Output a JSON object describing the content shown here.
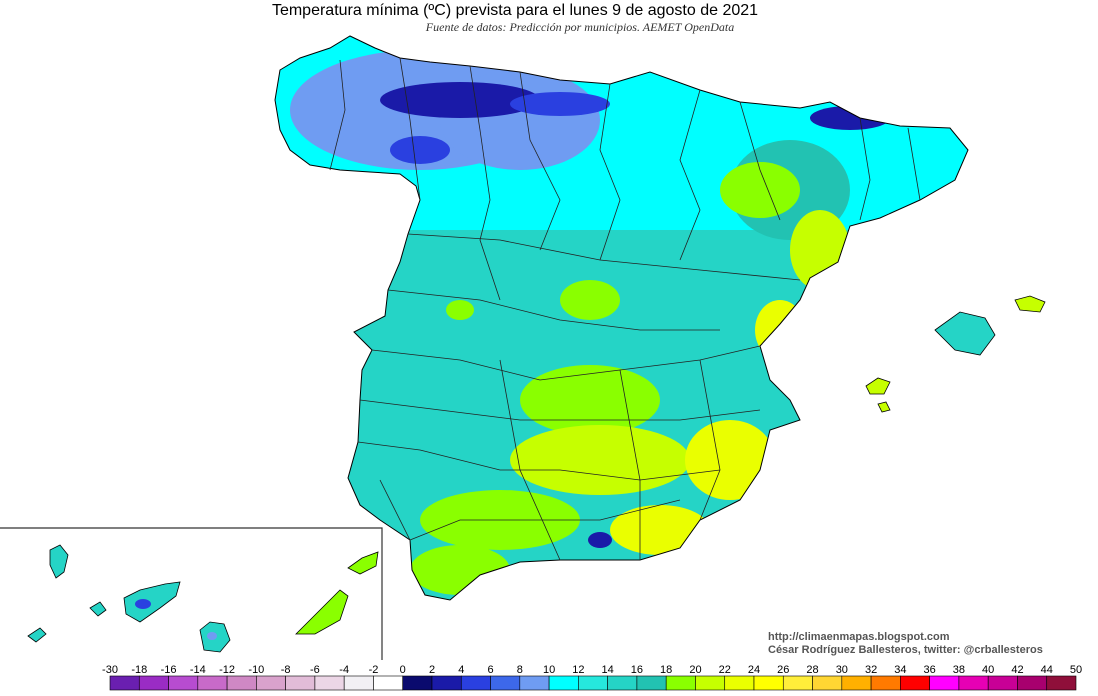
{
  "title": "Temperatura mínima (ºC) prevista para el lunes 9 de agosto de 2021",
  "subtitle": "Fuente de datos: Predicción por municipios. AEMET OpenData",
  "credit_url": "http://climaenmapas.blogspot.com",
  "credit_author": "César Rodríguez Ballesteros, twitter: @crballesteros",
  "legend": {
    "ticks": [
      "-30",
      "-18",
      "-16",
      "-14",
      "-12",
      "-10",
      "-8",
      "-6",
      "-4",
      "-2",
      "0",
      "2",
      "4",
      "6",
      "8",
      "10",
      "12",
      "14",
      "16",
      "18",
      "20",
      "22",
      "24",
      "26",
      "28",
      "30",
      "32",
      "34",
      "36",
      "38",
      "40",
      "42",
      "44",
      "50"
    ],
    "colors": [
      "#6a1fb0",
      "#9a2cc4",
      "#b74cd0",
      "#c86ac9",
      "#cf88c4",
      "#d9a2cc",
      "#e2bcd8",
      "#ecd6e6",
      "#f2f0f4",
      "#ffffff",
      "#0a0a6e",
      "#1a1aa8",
      "#2a40e0",
      "#3d68ea",
      "#6f9cf2",
      "#00ffff",
      "#26e8dd",
      "#25d4c6",
      "#22c2b2",
      "#8aff00",
      "#c6ff00",
      "#eaff00",
      "#ffff00",
      "#ffee3a",
      "#ffd633",
      "#ffb000",
      "#ff7a00",
      "#ff0000",
      "#ff00ff",
      "#e600b4",
      "#c80096",
      "#a8006e",
      "#8f0f3a"
    ]
  }
}
